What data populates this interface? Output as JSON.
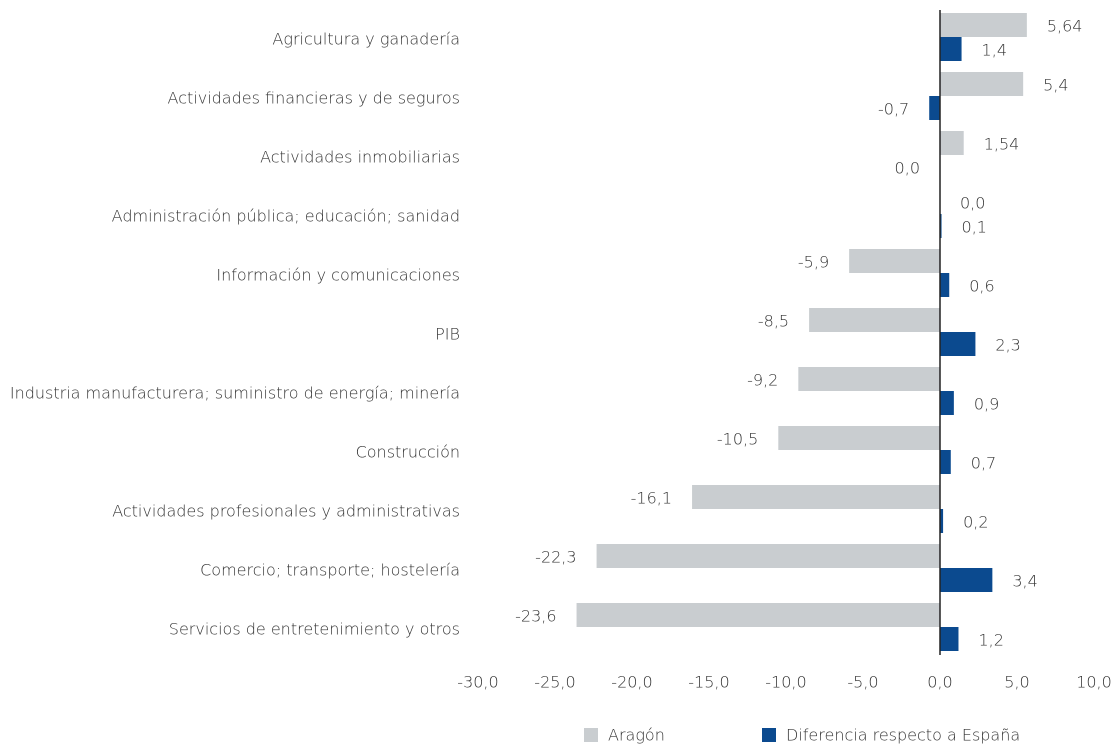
{
  "chart_data": {
    "type": "bar",
    "orientation": "horizontal",
    "categories": [
      "Agricultura y ganadería",
      "Actividades financieras y de seguros",
      "Actividades inmobiliarias",
      "Administración pública; educación; sanidad",
      "Información y comunicaciones",
      "PIB",
      "Industria manufacturera; suministro de energía; minería",
      "Construcción",
      "Actividades profesionales y administrativas",
      "Comercio; transporte; hostelería",
      "Servicios de entretenimiento y otros"
    ],
    "series": [
      {
        "name": "Aragón",
        "color": "#c9cdd0",
        "values": [
          5.64,
          5.4,
          1.54,
          0.0,
          -5.9,
          -8.5,
          -9.2,
          -10.5,
          -16.1,
          -22.3,
          -23.6
        ],
        "value_labels": [
          "5,64",
          "5,4",
          "1,54",
          "0,0",
          "-5,9",
          "-8,5",
          "-9,2",
          "-10,5",
          "-16,1",
          "-22,3",
          "-23,6"
        ]
      },
      {
        "name": "Diferencia respecto a España",
        "color": "#0b4a8f",
        "values": [
          1.4,
          -0.7,
          0.0,
          0.1,
          0.6,
          2.3,
          0.9,
          0.7,
          0.2,
          3.4,
          1.2
        ],
        "value_labels": [
          "1,4",
          "-0,7",
          "0,0",
          "0,1",
          "0,6",
          "2,3",
          "0,9",
          "0,7",
          "0,2",
          "3,4",
          "1,2"
        ]
      }
    ],
    "xlim": [
      -30,
      10
    ],
    "xticks": [
      {
        "value": -30,
        "label": "-30,0"
      },
      {
        "value": -25,
        "label": "-25,0"
      },
      {
        "value": -20,
        "label": "-20,0"
      },
      {
        "value": -15,
        "label": "-15,0"
      },
      {
        "value": -10,
        "label": "-10,0"
      },
      {
        "value": -5,
        "label": "-5,0"
      },
      {
        "value": 0,
        "label": "0,0"
      },
      {
        "value": 5,
        "label": "5,0"
      },
      {
        "value": 10,
        "label": "10,0"
      }
    ],
    "grid": false,
    "legend": "bottom"
  }
}
